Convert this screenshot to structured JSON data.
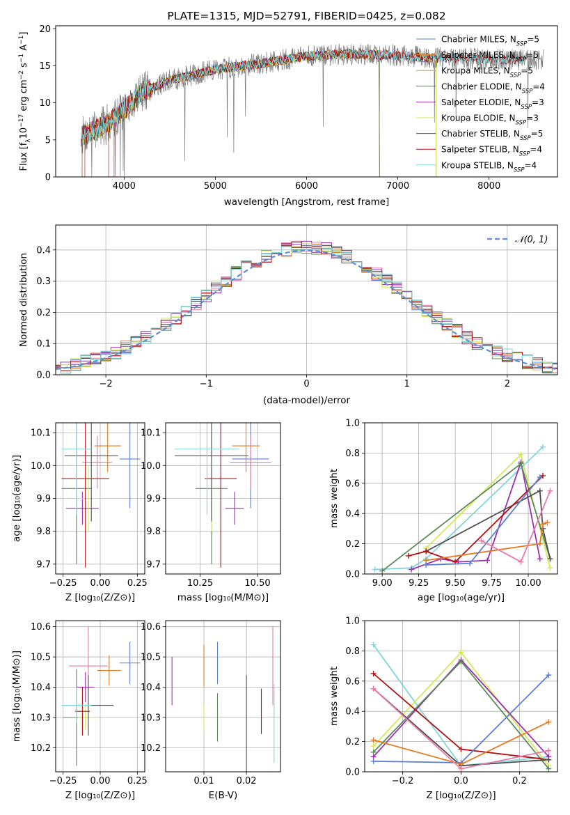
{
  "colors": {
    "chabrier_miles": "#5b7fd8",
    "salpeter_miles": "#e47a22",
    "kroupa_miles": "#d89a3a",
    "chabrier_elodie": "#5a8a5a",
    "salpeter_elodie": "#9b30b0",
    "kroupa_elodie": "#d4e85a",
    "chabrier_stelib": "#505050",
    "salpeter_stelib": "#b01010",
    "kroupa_stelib": "#7fd6dc",
    "gauss": "#5b8fd8",
    "pink": "#e87aa8",
    "olive": "#a8b820"
  },
  "chart_data": [
    {
      "id": "spectrum",
      "type": "line",
      "title": "PLATE=1315, MJD=52791, FIBERID=0425, z=0.082",
      "xlabel": "wavelength [Angstrom, rest frame]",
      "ylabel": "Flux [f_λ10^-17 erg cm^-2 s^-1 A^-1]",
      "xlim": [
        3250,
        8750
      ],
      "ylim": [
        0,
        20.4
      ],
      "xticks": [
        "4000",
        "5000",
        "6000",
        "7000",
        "8000"
      ],
      "yticks": [
        "0",
        "5",
        "10",
        "15",
        "20"
      ],
      "grid": false,
      "legend_position": "top-right",
      "legend": [
        {
          "label": "Chabrier MILES, N",
          "sub": "SSP",
          "suffix": "=5"
        },
        {
          "label": "Salpeter MILES, N",
          "sub": "SSP",
          "suffix": "=5"
        },
        {
          "label": "Kroupa MILES, N",
          "sub": "SSP",
          "suffix": "=5"
        },
        {
          "label": "Chabrier ELODIE, N",
          "sub": "SSP",
          "suffix": "=4"
        },
        {
          "label": "Salpeter ELODIE, N",
          "sub": "SSP",
          "suffix": "=3"
        },
        {
          "label": "Kroupa ELODIE, N",
          "sub": "SSP",
          "suffix": "=3"
        },
        {
          "label": "Chabrier STELIB, N",
          "sub": "SSP",
          "suffix": "=5"
        },
        {
          "label": "Salpeter STELIB, N",
          "sub": "SSP",
          "suffix": "=4"
        },
        {
          "label": "Kroupa STELIB, N",
          "sub": "SSP",
          "suffix": "=4"
        }
      ],
      "continuum": [
        [
          3530,
          5.5
        ],
        [
          3800,
          7.0
        ],
        [
          4000,
          9.0
        ],
        [
          4200,
          11.5
        ],
        [
          4500,
          13.0
        ],
        [
          5000,
          14.5
        ],
        [
          5500,
          15.3
        ],
        [
          6000,
          16.3
        ],
        [
          6500,
          16.6
        ],
        [
          7000,
          16.4
        ],
        [
          7500,
          16.0
        ],
        [
          8000,
          15.9
        ],
        [
          8500,
          15.8
        ]
      ]
    },
    {
      "id": "residuals",
      "type": "histogram",
      "xlabel": "(data-model)/error",
      "ylabel": "Normed distribution",
      "xlim": [
        -2.5,
        2.5
      ],
      "ylim": [
        0,
        0.48
      ],
      "xticks": [
        "−2",
        "−1",
        "0",
        "1",
        "2"
      ],
      "yticks": [
        "0.0",
        "0.1",
        "0.2",
        "0.3",
        "0.4"
      ],
      "grid": true,
      "legend_position": "top-right",
      "legend": [
        {
          "label": "𝒩(0, 1)"
        }
      ],
      "bin_width": 0.1
    },
    {
      "id": "age-vs-z",
      "type": "errorbar",
      "xlabel": "Z [log₁₀(Z/Z⊙)]",
      "ylabel": "age  [log₁₀(age/yr)]",
      "xlim": [
        -0.3,
        0.3
      ],
      "ylim": [
        9.67,
        10.13
      ],
      "xticks": [
        "−0.25",
        "0.00",
        "0.25"
      ],
      "yticks": [
        "9.7",
        "9.8",
        "9.9",
        "10.0",
        "10.1"
      ],
      "grid": true,
      "points": [
        {
          "x": 0.2,
          "xerr": 0.07,
          "y": 10.02,
          "yerr": 0.15,
          "c": "chabrier_miles"
        },
        {
          "x": 0.05,
          "xerr": 0.09,
          "y": 10.06,
          "yerr": 0.08,
          "c": "salpeter_miles"
        },
        {
          "x": -0.02,
          "xerr": 0.1,
          "y": 10.01,
          "yerr": 0.08,
          "c": "pink"
        },
        {
          "x": -0.16,
          "xerr": 0.1,
          "y": 9.93,
          "yerr": 0.23,
          "c": "chabrier_elodie"
        },
        {
          "x": -0.12,
          "xerr": 0.11,
          "y": 9.87,
          "yerr": 0.05,
          "c": "salpeter_elodie"
        },
        {
          "x": -0.08,
          "xerr": 0.09,
          "y": 9.9,
          "yerr": 0.1,
          "c": "kroupa_elodie"
        },
        {
          "x": -0.06,
          "xerr": 0.18,
          "y": 10.03,
          "yerr": 0.2,
          "c": "chabrier_stelib"
        },
        {
          "x": -0.1,
          "xerr": 0.16,
          "y": 9.96,
          "yerr": 0.27,
          "c": "salpeter_stelib"
        },
        {
          "x": -0.16,
          "xerr": 0.1,
          "y": 10.05,
          "yerr": 0.2,
          "c": "kroupa_stelib"
        }
      ]
    },
    {
      "id": "age-vs-mass",
      "type": "errorbar",
      "xlabel": "mass [log₁₀(M/M⊙)]",
      "xlim": [
        10.1,
        10.6
      ],
      "ylim": [
        9.67,
        10.13
      ],
      "xticks": [
        "10.25",
        "10.50"
      ],
      "yticks": [
        "9.7",
        "9.8",
        "9.9",
        "10.0",
        "10.1"
      ],
      "grid": true,
      "points": [
        {
          "x": 10.47,
          "xerr": 0.08,
          "y": 10.02,
          "yerr": 0.15,
          "c": "chabrier_miles"
        },
        {
          "x": 10.45,
          "xerr": 0.06,
          "y": 10.06,
          "yerr": 0.08,
          "c": "salpeter_miles"
        },
        {
          "x": 10.47,
          "xerr": 0.09,
          "y": 10.01,
          "yerr": 0.08,
          "c": "pink"
        },
        {
          "x": 10.3,
          "xerr": 0.07,
          "y": 9.93,
          "yerr": 0.23,
          "c": "chabrier_elodie"
        },
        {
          "x": 10.4,
          "xerr": 0.04,
          "y": 9.87,
          "yerr": 0.05,
          "c": "salpeter_elodie"
        },
        {
          "x": 10.3,
          "xerr": 0.05,
          "y": 9.9,
          "yerr": 0.1,
          "c": "kroupa_elodie"
        },
        {
          "x": 10.3,
          "xerr": 0.16,
          "y": 10.03,
          "yerr": 0.2,
          "c": "chabrier_stelib"
        },
        {
          "x": 10.34,
          "xerr": 0.07,
          "y": 9.96,
          "yerr": 0.27,
          "c": "salpeter_stelib"
        },
        {
          "x": 10.28,
          "xerr": 0.14,
          "y": 10.05,
          "yerr": 0.2,
          "c": "kroupa_stelib"
        }
      ]
    },
    {
      "id": "weight-vs-age",
      "type": "line",
      "xlabel": "age  [log₁₀(age/yr)]",
      "ylabel": "mass weight",
      "xlim": [
        8.88,
        10.2
      ],
      "ylim": [
        0,
        1.0
      ],
      "xticks": [
        "9.00",
        "9.25",
        "9.50",
        "9.75",
        "10.00"
      ],
      "yticks": [
        "0.0",
        "0.2",
        "0.4",
        "0.6",
        "0.8",
        "1.0"
      ],
      "grid": true,
      "series": [
        {
          "c": "kroupa_elodie",
          "x": [
            9.3,
            9.95,
            10.15
          ],
          "y": [
            0.17,
            0.79,
            0.04
          ]
        },
        {
          "c": "kroupa_stelib",
          "x": [
            8.95,
            9.2,
            9.3,
            10.1
          ],
          "y": [
            0.03,
            0.04,
            0.1,
            0.84
          ]
        },
        {
          "c": "salpeter_elodie",
          "x": [
            9.2,
            9.4,
            9.52,
            9.72,
            9.95,
            10.08
          ],
          "y": [
            0.03,
            0.1,
            0.08,
            0.09,
            0.74,
            0.1
          ]
        },
        {
          "c": "chabrier_elodie",
          "x": [
            9.0,
            9.95,
            10.15
          ],
          "y": [
            0.02,
            0.73,
            0.1
          ]
        },
        {
          "c": "chabrier_stelib",
          "x": [
            9.3,
            10.08,
            10.1,
            10.15
          ],
          "y": [
            0.15,
            0.55,
            0.3,
            0.1
          ]
        },
        {
          "c": "salpeter_stelib",
          "x": [
            9.18,
            9.3,
            9.5,
            10.1
          ],
          "y": [
            0.12,
            0.15,
            0.08,
            0.65
          ]
        },
        {
          "c": "salpeter_miles",
          "x": [
            9.3,
            10.08,
            10.1,
            10.13
          ],
          "y": [
            0.09,
            0.2,
            0.33,
            0.34
          ]
        },
        {
          "c": "chabrier_miles",
          "x": [
            9.3,
            9.6,
            10.08
          ],
          "y": [
            0.06,
            0.07,
            0.64
          ]
        },
        {
          "c": "pink",
          "x": [
            9.68,
            9.95,
            10.15
          ],
          "y": [
            0.22,
            0.08,
            0.55
          ]
        }
      ]
    },
    {
      "id": "mass-vs-z",
      "type": "errorbar",
      "xlabel": "Z [log₁₀(Z/Z⊙)]",
      "ylabel": "mass [log₁₀(M/M⊙)]",
      "xlim": [
        -0.3,
        0.3
      ],
      "ylim": [
        10.12,
        10.62
      ],
      "xticks": [
        "−0.25",
        "0.00",
        "0.25"
      ],
      "yticks": [
        "10.2",
        "10.3",
        "10.4",
        "10.5",
        "10.6"
      ],
      "grid": true,
      "points": [
        {
          "x": 0.2,
          "xerr": 0.07,
          "y": 10.48,
          "yerr": 0.07,
          "c": "chabrier_miles"
        },
        {
          "x": 0.06,
          "xerr": 0.08,
          "y": 10.455,
          "yerr": 0.05,
          "c": "salpeter_miles"
        },
        {
          "x": -0.08,
          "xerr": 0.13,
          "y": 10.47,
          "yerr": 0.13,
          "c": "pink"
        },
        {
          "x": -0.16,
          "xerr": 0.09,
          "y": 10.3,
          "yerr": 0.16,
          "c": "chabrier_elodie"
        },
        {
          "x": -0.1,
          "xerr": 0.06,
          "y": 10.4,
          "yerr": 0.05,
          "c": "salpeter_elodie"
        },
        {
          "x": -0.1,
          "xerr": 0.05,
          "y": 10.3,
          "yerr": 0.04,
          "c": "kroupa_elodie"
        },
        {
          "x": -0.08,
          "xerr": 0.17,
          "y": 10.34,
          "yerr": 0.1,
          "c": "chabrier_stelib"
        },
        {
          "x": -0.12,
          "xerr": 0.05,
          "y": 10.32,
          "yerr": 0.08,
          "c": "salpeter_stelib"
        },
        {
          "x": -0.16,
          "xerr": 0.1,
          "y": 10.34,
          "yerr": 0.06,
          "c": "kroupa_stelib"
        }
      ]
    },
    {
      "id": "mass-vs-ebv",
      "type": "errorbar",
      "xlabel": "E(B-V)",
      "xlim": [
        0.001,
        0.028
      ],
      "ylim": [
        10.12,
        10.62
      ],
      "xticks": [
        "0.01",
        "0.02"
      ],
      "yticks": [
        "10.2",
        "10.3",
        "10.4",
        "10.5",
        "10.6"
      ],
      "grid": true,
      "points": [
        {
          "x": 0.0025,
          "y": 10.42,
          "yerr": 0.08,
          "c": "salpeter_elodie"
        },
        {
          "x": 0.01,
          "y": 10.47,
          "yerr": 0.07,
          "c": "salpeter_miles"
        },
        {
          "x": 0.01,
          "y": 10.3,
          "yerr": 0.04,
          "c": "kroupa_elodie"
        },
        {
          "x": 0.0132,
          "y": 10.48,
          "yerr": 0.07,
          "c": "chabrier_miles"
        },
        {
          "x": 0.0132,
          "y": 10.3,
          "yerr": 0.08,
          "c": "chabrier_elodie"
        },
        {
          "x": 0.02,
          "y": 10.28,
          "yerr": 0.16,
          "c": "chabrier_stelib"
        },
        {
          "x": 0.0235,
          "y": 10.32,
          "yerr": 0.075,
          "c": "salpeter_stelib"
        },
        {
          "x": 0.0262,
          "y": 10.47,
          "yerr": 0.13,
          "c": "pink"
        },
        {
          "x": 0.0265,
          "y": 10.28,
          "yerr": 0.13,
          "c": "kroupa_stelib"
        }
      ]
    },
    {
      "id": "weight-vs-z",
      "type": "line",
      "xlabel": "Z [log₁₀(Z/Z⊙)]",
      "ylabel": "mass weight",
      "xlim": [
        -0.33,
        0.33
      ],
      "ylim": [
        0,
        1.0
      ],
      "xticks": [
        "−0.2",
        "0.0",
        "0.2"
      ],
      "yticks": [
        "0.0",
        "0.2",
        "0.4",
        "0.6",
        "0.8",
        "1.0"
      ],
      "grid": true,
      "series": [
        {
          "c": "kroupa_stelib",
          "x": [
            -0.3,
            0.0,
            0.3
          ],
          "y": [
            0.84,
            0.04,
            0.1
          ]
        },
        {
          "c": "kroupa_elodie",
          "x": [
            -0.3,
            0.0,
            0.3
          ],
          "y": [
            0.17,
            0.79,
            0.04
          ]
        },
        {
          "c": "salpeter_elodie",
          "x": [
            -0.3,
            0.0,
            0.3
          ],
          "y": [
            0.1,
            0.74,
            0.1
          ]
        },
        {
          "c": "chabrier_elodie",
          "x": [
            -0.3,
            0.0,
            0.3
          ],
          "y": [
            0.13,
            0.73,
            0.02
          ]
        },
        {
          "c": "salpeter_stelib",
          "x": [
            -0.3,
            0.0,
            0.3
          ],
          "y": [
            0.65,
            0.15,
            0.08
          ]
        },
        {
          "c": "chabrier_stelib",
          "x": [
            -0.3,
            0.0,
            0.3
          ],
          "y": [
            0.55,
            0.04,
            0.08
          ]
        },
        {
          "c": "chabrier_miles",
          "x": [
            -0.3,
            0.0,
            0.3
          ],
          "y": [
            0.07,
            0.06,
            0.64
          ]
        },
        {
          "c": "salpeter_miles",
          "x": [
            -0.3,
            0.0,
            0.3
          ],
          "y": [
            0.21,
            0.05,
            0.33
          ]
        },
        {
          "c": "pink",
          "x": [
            -0.3,
            0.0,
            0.3
          ],
          "y": [
            0.55,
            0.02,
            0.14
          ]
        }
      ]
    }
  ]
}
